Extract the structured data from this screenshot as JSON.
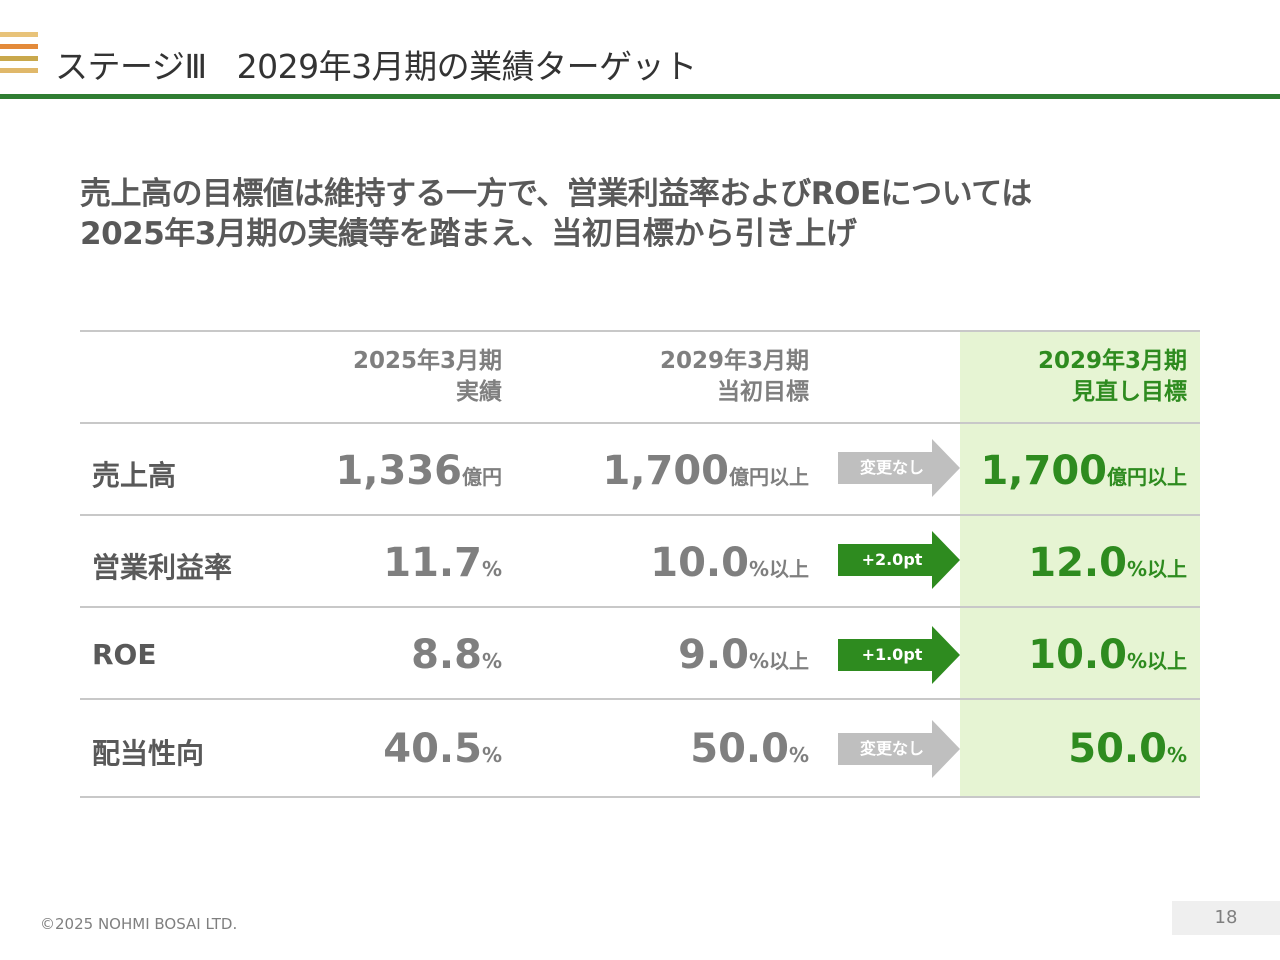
{
  "title": {
    "stage": "ステージⅢ",
    "text": "2029年3月期の業績ターゲット"
  },
  "headline": {
    "line1": "売上高の目標値は維持する一方で、営業利益率およびROEについては",
    "line2": "2025年3月期の実績等を踏まえ、当初目標から引き上げ"
  },
  "colors": {
    "accent_green": "#2e8b1f",
    "title_rule": "#2f7d32",
    "highlight_bg": "#e6f4d3",
    "arrow_gray": "#bfbfbf",
    "stripe_1": "#e8c37a",
    "stripe_2": "#e38a3a",
    "stripe_3": "#c9a84c",
    "stripe_4": "#e0b86a"
  },
  "table": {
    "headers": {
      "actual": {
        "line1": "2025年3月期",
        "line2": "実績"
      },
      "initial": {
        "line1": "2029年3月期",
        "line2": "当初目標"
      },
      "revised": {
        "line1": "2029年3月期",
        "line2": "見直し目標"
      }
    },
    "rows": [
      {
        "label": "売上高",
        "actual": {
          "num": "1,336",
          "unit": "億円"
        },
        "initial": {
          "num": "1,700",
          "unit": "億円以上"
        },
        "change": "変更なし",
        "change_type": "gray",
        "revised": {
          "num": "1,700",
          "unit": "億円以上"
        }
      },
      {
        "label": "営業利益率",
        "actual": {
          "num": "11.7",
          "unit": "%"
        },
        "initial": {
          "num": "10.0",
          "unit": "%以上"
        },
        "change": "+2.0pt",
        "change_type": "green",
        "revised": {
          "num": "12.0",
          "unit": "%以上"
        }
      },
      {
        "label": "ROE",
        "actual": {
          "num": "8.8",
          "unit": "%"
        },
        "initial": {
          "num": "9.0",
          "unit": "%以上"
        },
        "change": "+1.0pt",
        "change_type": "green",
        "revised": {
          "num": "10.0",
          "unit": "%以上"
        }
      },
      {
        "label": "配当性向",
        "actual": {
          "num": "40.5",
          "unit": "%"
        },
        "initial": {
          "num": "50.0",
          "unit": "%"
        },
        "change": "変更なし",
        "change_type": "gray",
        "revised": {
          "num": "50.0",
          "unit": "%"
        }
      }
    ]
  },
  "footer": {
    "copyright": "©2025 NOHMI BOSAI LTD.",
    "page": "18"
  }
}
